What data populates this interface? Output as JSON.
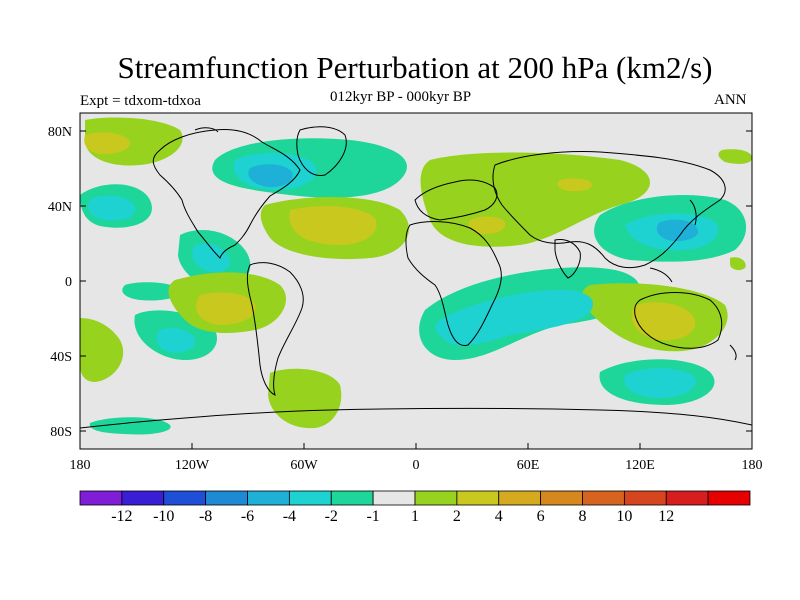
{
  "title": "Streamfunction Perturbation at 200 hPa (km2/s)",
  "left_subtitle": "Expt = tdxom-tdxoa",
  "center_subtitle": "012kyr BP - 000kyr BP",
  "right_subtitle": "ANN",
  "lat_ticks": [
    "80N",
    "40N",
    "0",
    "40S",
    "80S"
  ],
  "lon_ticks": [
    "180",
    "120W",
    "60W",
    "0",
    "60E",
    "120E",
    "180"
  ],
  "colorbar": {
    "colors": [
      "#7f1ed6",
      "#3a1ed6",
      "#1e4fd6",
      "#1e8ad6",
      "#1eb0d6",
      "#1ed2d2",
      "#1ed69a",
      "#e6e6e6",
      "#96d21e",
      "#c8c81e",
      "#d6aa1e",
      "#d6881e",
      "#d6641e",
      "#d6461e",
      "#d61e1e",
      "#e60000"
    ],
    "labels": [
      "-12",
      "-10",
      "-8",
      "-6",
      "-4",
      "-2",
      "-1",
      "1",
      "2",
      "4",
      "6",
      "8",
      "10",
      "12"
    ]
  }
}
